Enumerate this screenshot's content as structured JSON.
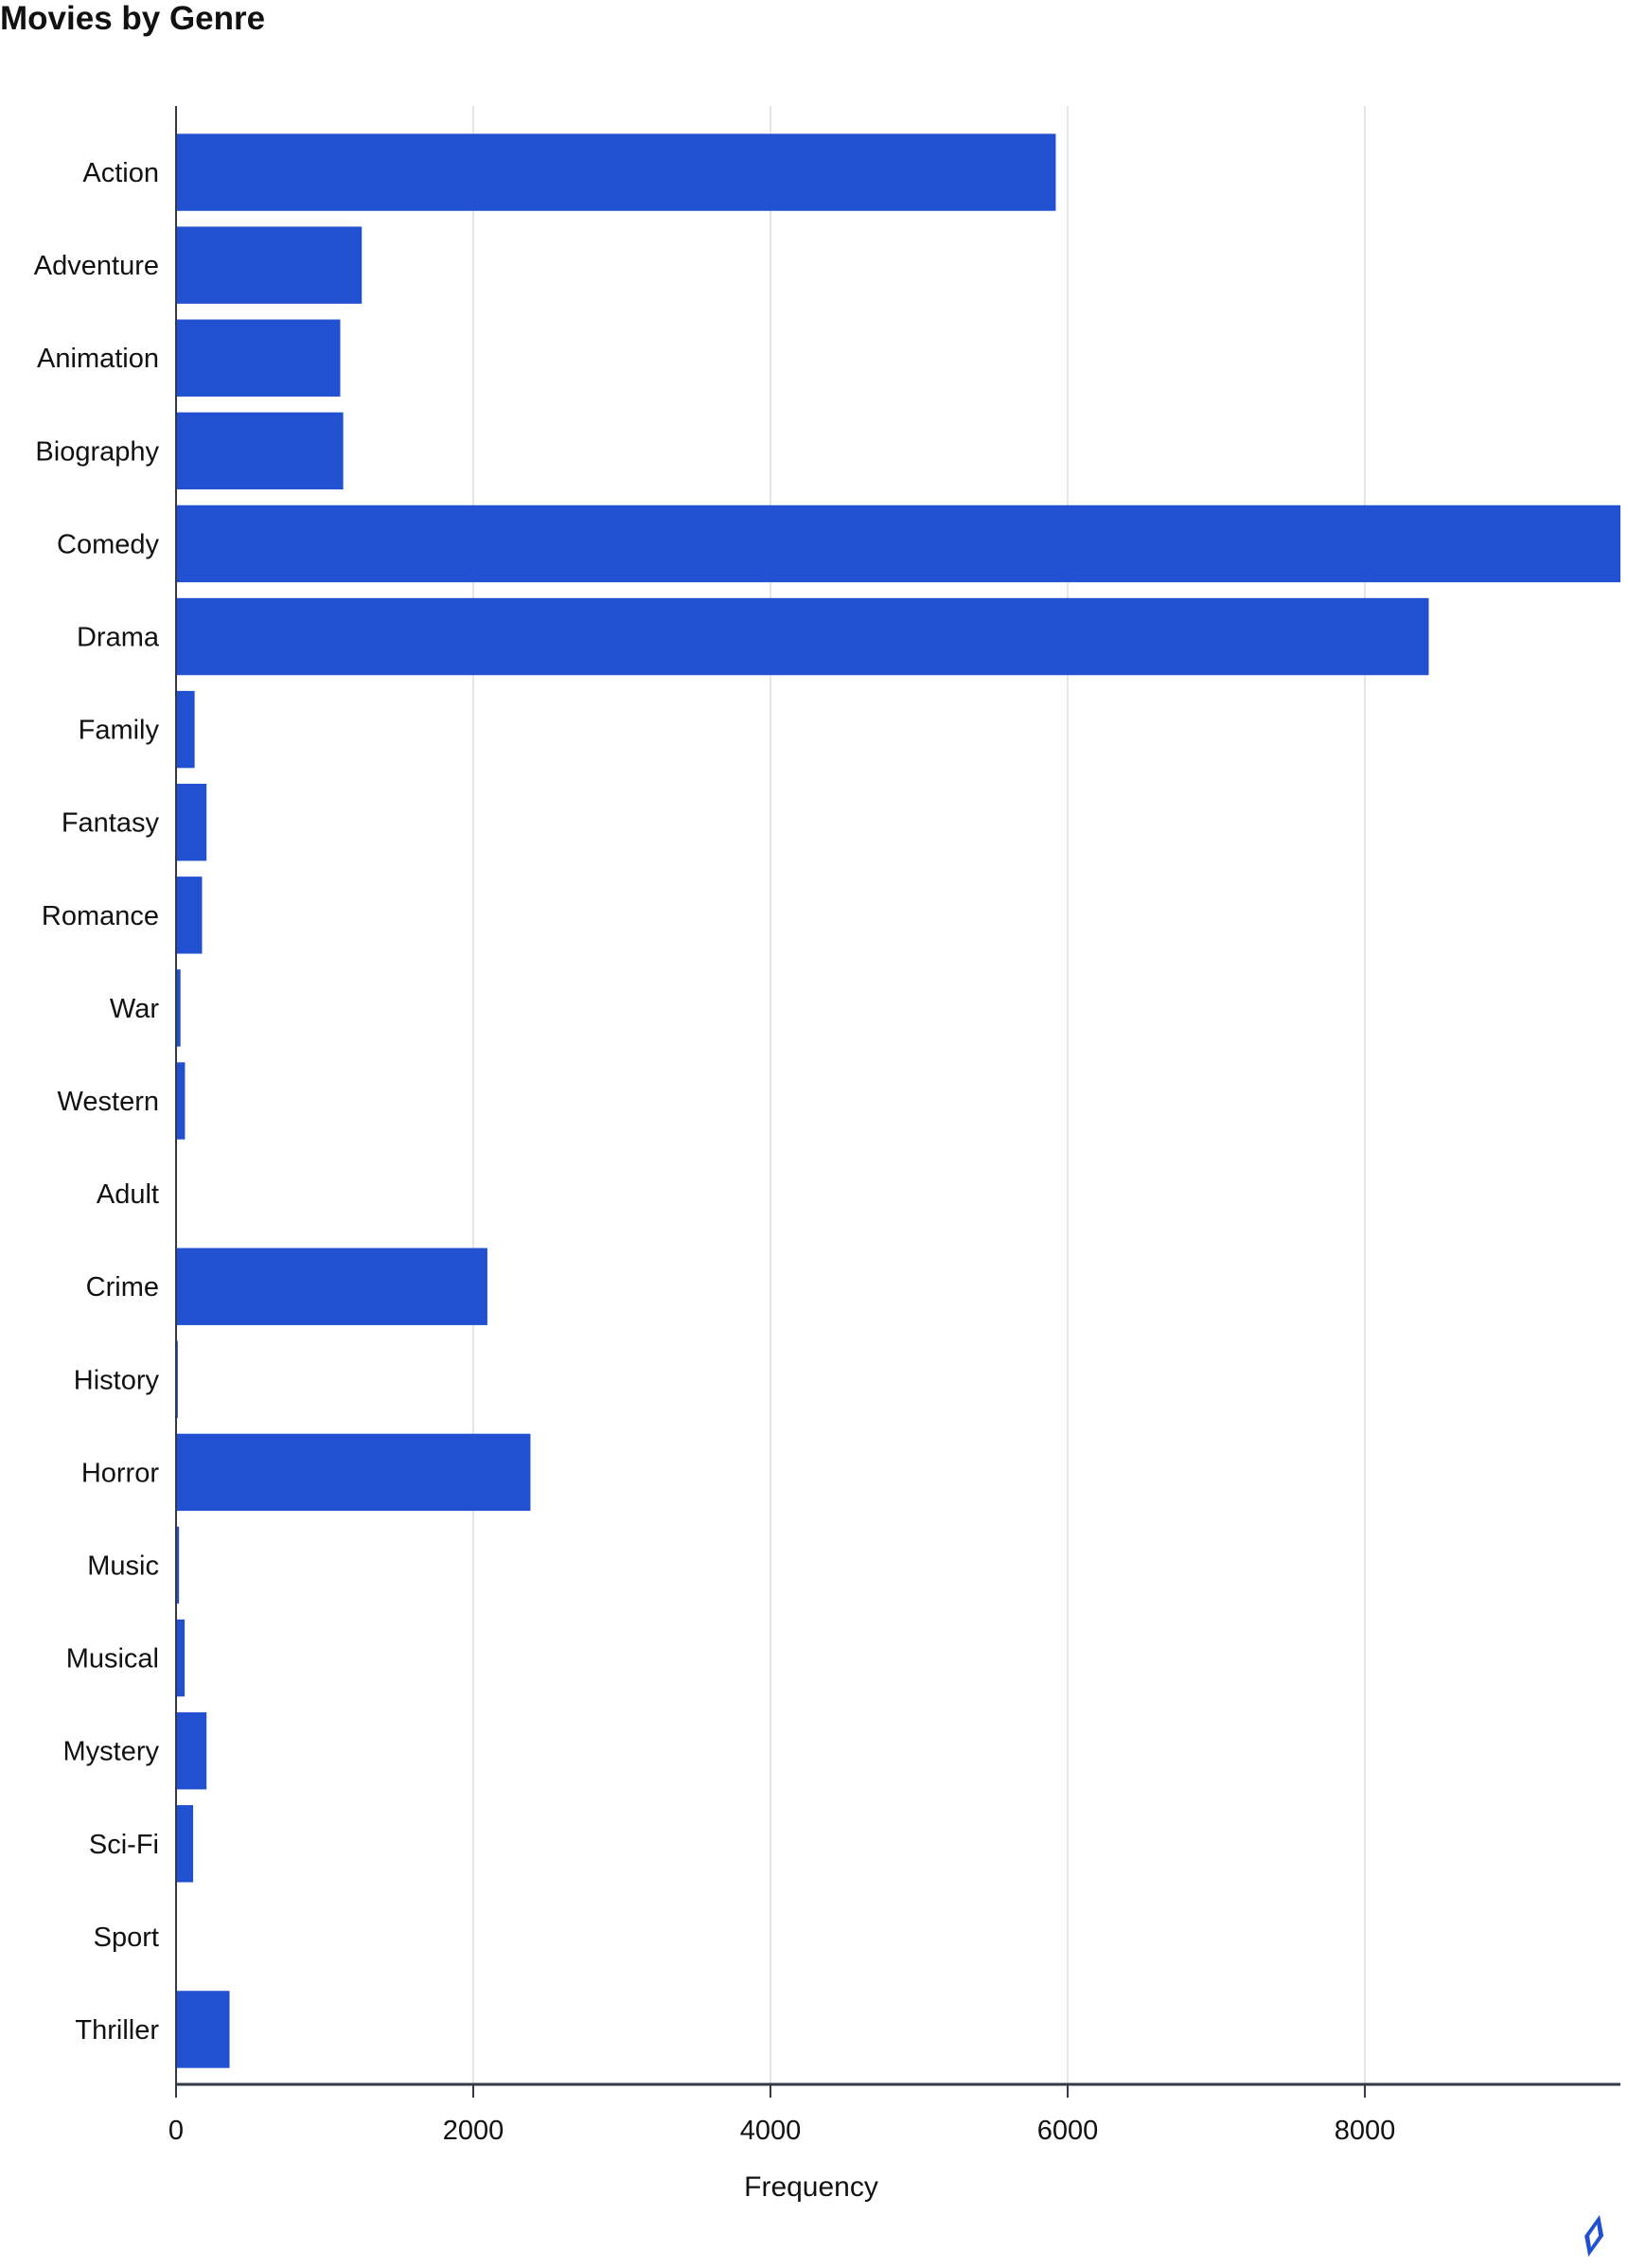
{
  "chart_data": {
    "type": "bar",
    "orientation": "horizontal",
    "title": "Movies by Genre",
    "xlabel": "Frequency",
    "ylabel": "",
    "categories": [
      "Action",
      "Adventure",
      "Animation",
      "Biography",
      "Comedy",
      "Drama",
      "Family",
      "Fantasy",
      "Romance",
      "War",
      "Western",
      "Adult",
      "Crime",
      "History",
      "Horror",
      "Music",
      "Musical",
      "Mystery",
      "Sci-Fi",
      "Sport",
      "Thriller"
    ],
    "values": [
      5920,
      1250,
      1105,
      1125,
      9720,
      8430,
      125,
      205,
      175,
      30,
      60,
      3,
      2095,
      12,
      2385,
      20,
      58,
      205,
      115,
      4,
      360
    ],
    "xlim": [
      0,
      9720
    ],
    "xticks": [
      "0",
      "2000",
      "4000",
      "6000",
      "8000"
    ],
    "grid": "vertical",
    "bar_color": "#2150d0"
  }
}
